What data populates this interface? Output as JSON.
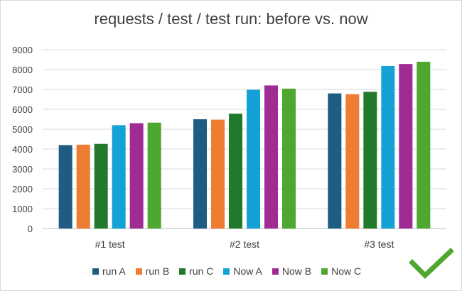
{
  "chart_data": {
    "type": "bar",
    "title": "requests / test / test run: before vs. now",
    "xlabel": "",
    "ylabel": "",
    "categories": [
      "#1 test",
      "#2 test",
      "#3 test"
    ],
    "ylim": [
      0,
      9000
    ],
    "yticks": [
      0,
      1000,
      2000,
      3000,
      4000,
      5000,
      6000,
      7000,
      8000,
      9000
    ],
    "grid": true,
    "legend_position": "bottom",
    "series": [
      {
        "name": "run A",
        "color": "#1f5c82",
        "values": [
          4200,
          5500,
          6800
        ]
      },
      {
        "name": "run B",
        "color": "#ed7d31",
        "values": [
          4220,
          5480,
          6760
        ]
      },
      {
        "name": "run C",
        "color": "#217a2c",
        "values": [
          4260,
          5780,
          6880
        ]
      },
      {
        "name": "Now A",
        "color": "#13a1d6",
        "values": [
          5200,
          6980,
          8180
        ]
      },
      {
        "name": "Now B",
        "color": "#a02b93",
        "values": [
          5300,
          7200,
          8280
        ]
      },
      {
        "name": "Now C",
        "color": "#4ea72e",
        "values": [
          5330,
          7040,
          8390
        ]
      }
    ]
  },
  "decoration": {
    "check_icon": "checkmark-icon",
    "check_color": "#4ea72e"
  }
}
